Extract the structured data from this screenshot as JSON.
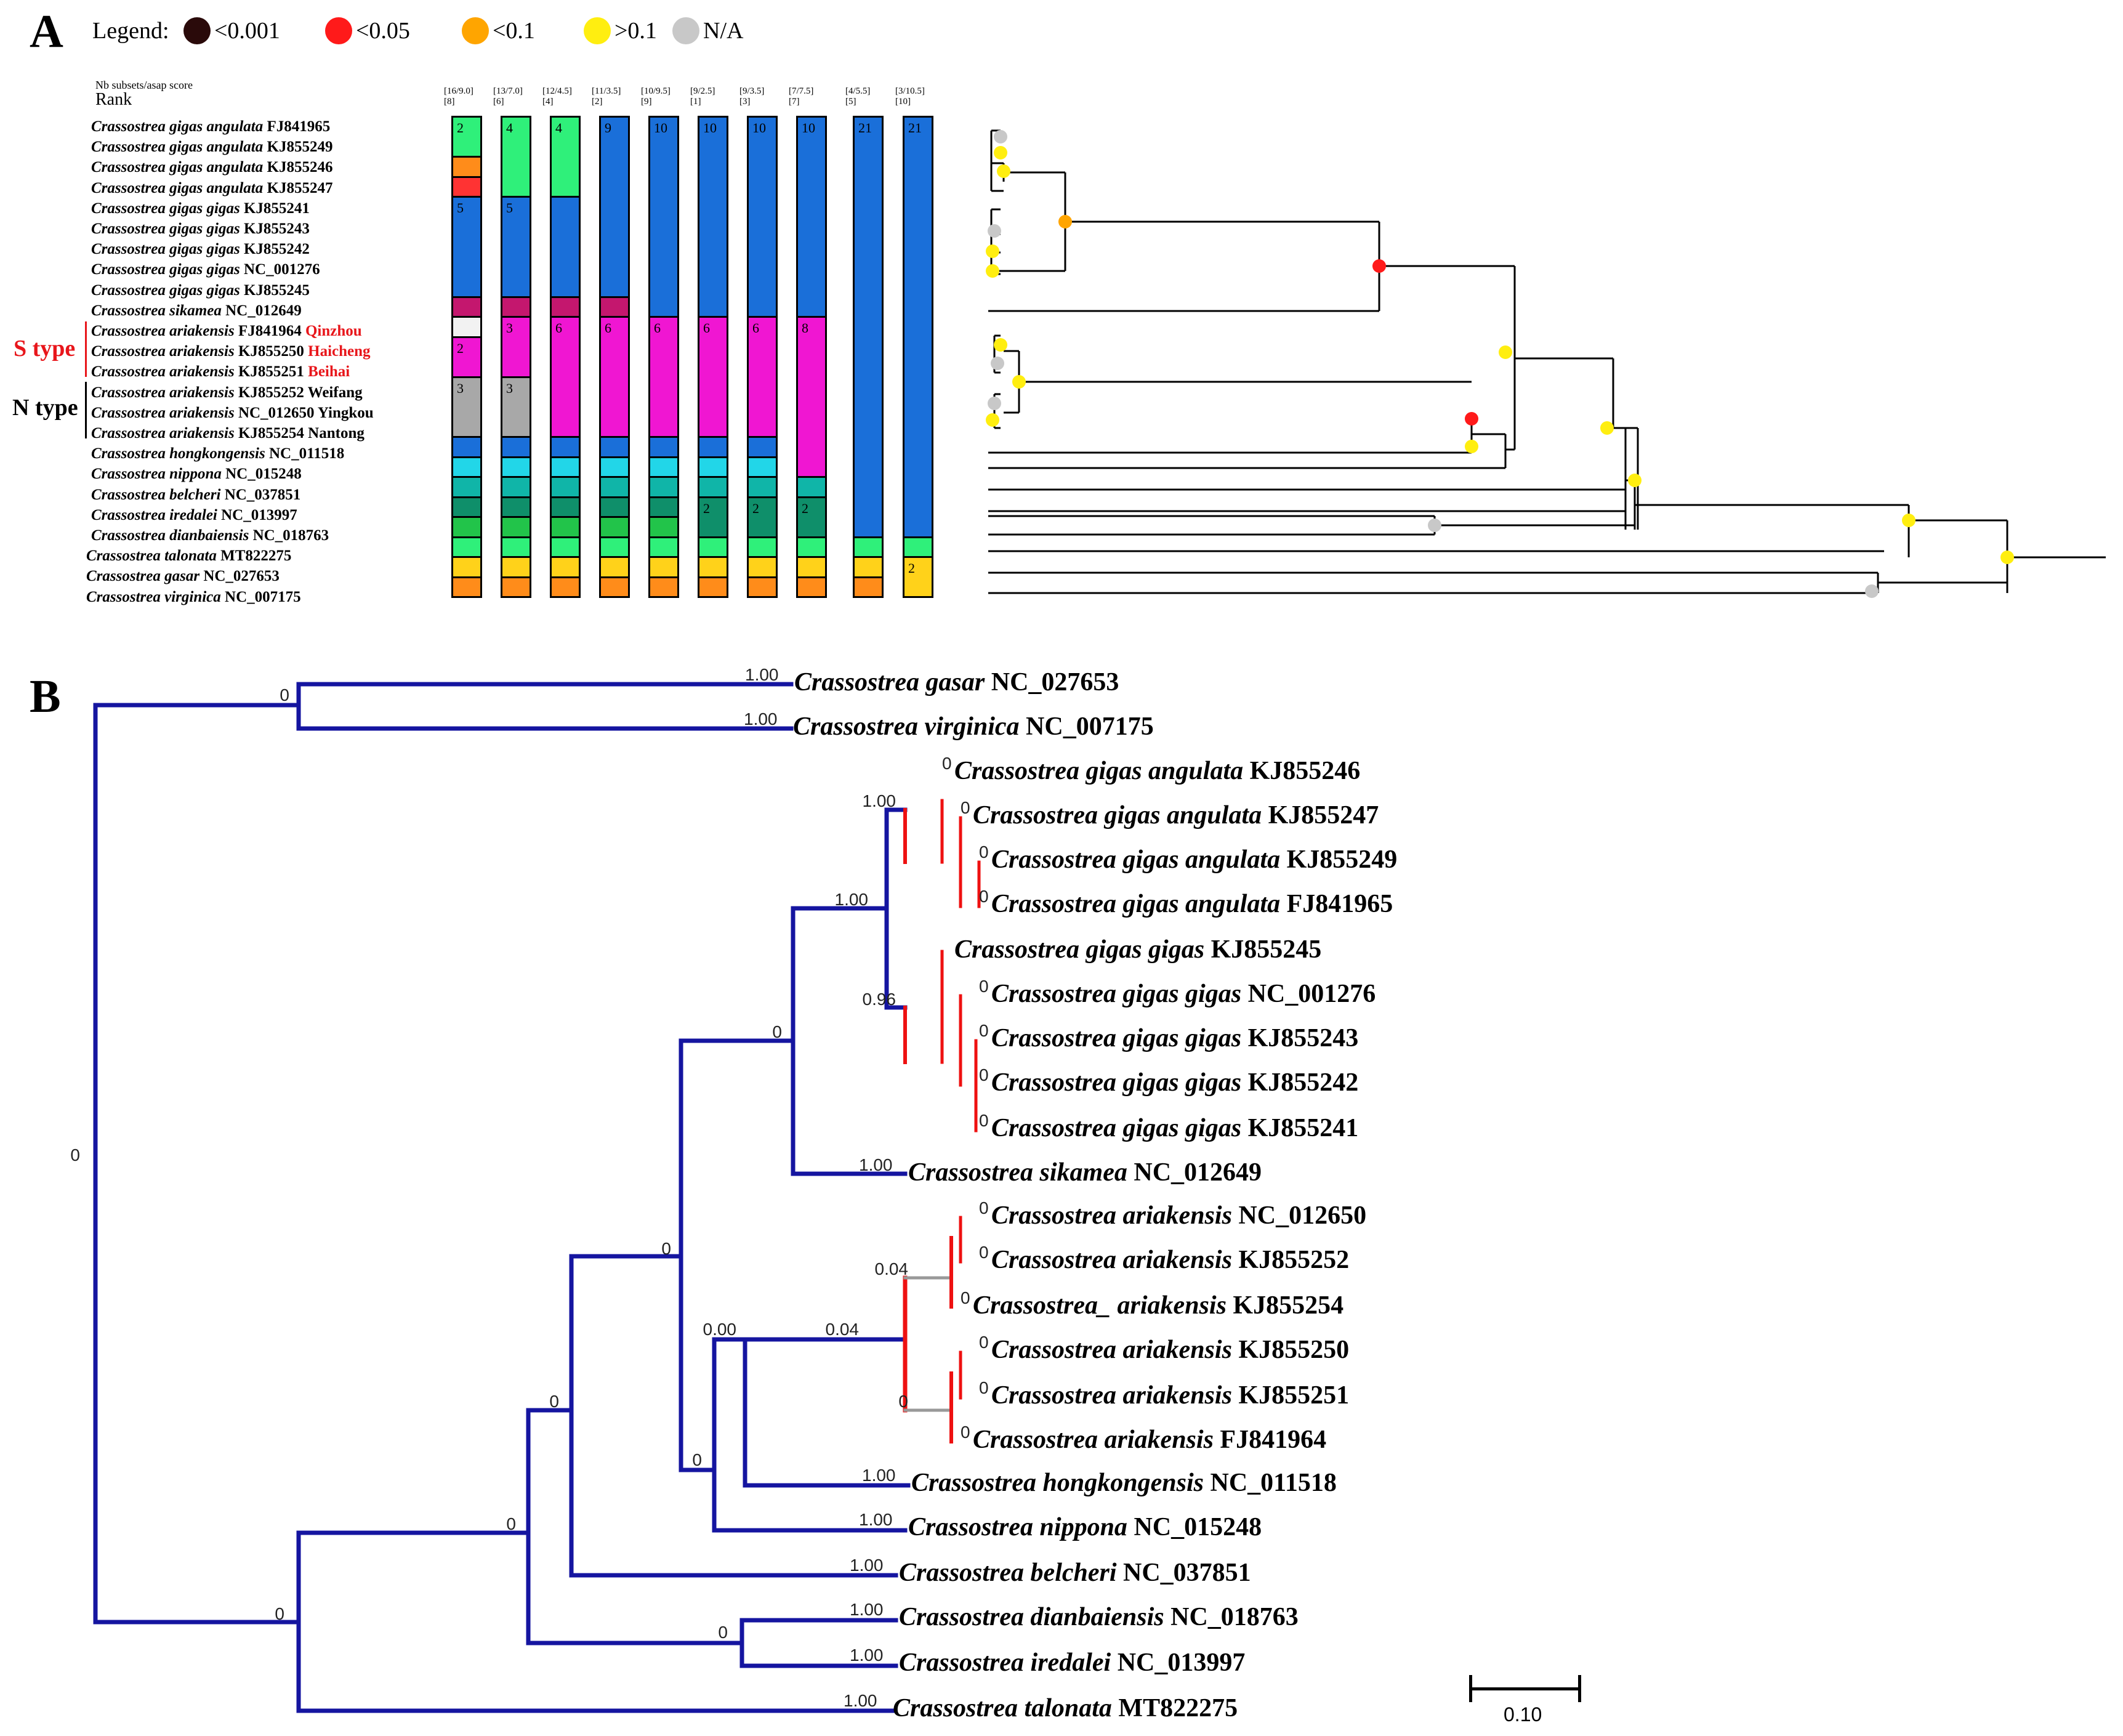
{
  "panelA": {
    "letter": "A",
    "legend": {
      "title": "Legend:",
      "items": [
        {
          "label": "<0.001",
          "color": "#2a0a0a"
        },
        {
          "label": "<0.05",
          "color": "#ff1a1a"
        },
        {
          "label": "<0.1",
          "color": "#ffa500"
        },
        {
          "label": ">0.1",
          "color": "#ffee10"
        },
        {
          "label": "N/A",
          "color": "#c8c8c8"
        }
      ]
    },
    "header_small": "Nb subsets/asap score",
    "header_rank": "Rank",
    "taxa": [
      {
        "italic": "Crassostrea gigas angulata",
        "rest": " FJ841965",
        "loc": ""
      },
      {
        "italic": "Crassostrea gigas angulata",
        "rest": " KJ855249",
        "loc": ""
      },
      {
        "italic": "Crassostrea gigas angulata",
        "rest": " KJ855246",
        "loc": ""
      },
      {
        "italic": "Crassostrea gigas angulata",
        "rest": " KJ855247",
        "loc": ""
      },
      {
        "italic": "Crassostrea gigas gigas",
        "rest": " KJ855241",
        "loc": ""
      },
      {
        "italic": "Crassostrea gigas gigas",
        "rest": " KJ855243",
        "loc": ""
      },
      {
        "italic": "Crassostrea gigas gigas",
        "rest": " KJ855242",
        "loc": ""
      },
      {
        "italic": "Crassostrea gigas gigas",
        "rest": " NC_001276",
        "loc": ""
      },
      {
        "italic": "Crassostrea gigas gigas",
        "rest": " KJ855245",
        "loc": ""
      },
      {
        "italic": "Crassostrea sikamea",
        "rest": " NC_012649",
        "loc": ""
      },
      {
        "italic": "Crassostrea ariakensis",
        "rest": " FJ841964",
        "loc": "Qinzhou",
        "locColor": "#e8161b"
      },
      {
        "italic": "Crassostrea ariakensis",
        "rest": " KJ855250",
        "loc": "Haicheng",
        "locColor": "#e8161b"
      },
      {
        "italic": "Crassostrea ariakensis",
        "rest": " KJ855251",
        "loc": "Beihai",
        "locColor": "#e8161b"
      },
      {
        "italic": "Crassostrea ariakensis",
        "rest": " KJ855252",
        "loc": "Weifang",
        "locColor": "#000000"
      },
      {
        "italic": "Crassostrea ariakensis",
        "rest": " NC_012650",
        "loc": "Yingkou",
        "locColor": "#000000"
      },
      {
        "italic": "Crassostrea ariakensis",
        "rest": " KJ855254",
        "loc": "Nantong",
        "locColor": "#000000"
      },
      {
        "italic": "Crassostrea hongkongensis",
        "rest": " NC_011518",
        "loc": ""
      },
      {
        "italic": "Crassostrea nippona",
        "rest": " NC_015248",
        "loc": ""
      },
      {
        "italic": "Crassostrea belcheri",
        "rest": " NC_037851",
        "loc": ""
      },
      {
        "italic": "Crassostrea iredalei",
        "rest": " NC_013997",
        "loc": ""
      },
      {
        "italic": "Crassostrea dianbaiensis",
        "rest": " NC_018763",
        "loc": ""
      },
      {
        "italic": "Crassostrea talonata",
        "rest": " MT822275",
        "loc": ""
      },
      {
        "italic": "Crassostrea gasar",
        "rest": " NC_027653",
        "loc": ""
      },
      {
        "italic": "Crassostrea virginica",
        "rest": " NC_007175",
        "loc": ""
      }
    ],
    "s_type_label": "S type",
    "n_type_label": "N type",
    "type_colors": {
      "s": "#e8161b",
      "n": "#000000"
    },
    "columns": [
      {
        "score": "[16/9.0]",
        "rank": "[8]",
        "segments": [
          {
            "from": 0,
            "to": 2,
            "color": "#2ff07a",
            "label": "2"
          },
          {
            "from": 2,
            "to": 3,
            "color": "#ff8c1a",
            "label": ""
          },
          {
            "from": 3,
            "to": 4,
            "color": "#ff3333",
            "label": ""
          },
          {
            "from": 4,
            "to": 9,
            "color": "#1a6fd9",
            "label": "5"
          },
          {
            "from": 9,
            "to": 10,
            "color": "#c4176e",
            "label": ""
          },
          {
            "from": 10,
            "to": 11,
            "color": "#f2f2f2",
            "label": ""
          },
          {
            "from": 11,
            "to": 13,
            "color": "#f016d2",
            "label": "2"
          },
          {
            "from": 13,
            "to": 16,
            "color": "#a8a8a8",
            "label": "3"
          },
          {
            "from": 16,
            "to": 17,
            "color": "#1a6fd9",
            "label": ""
          },
          {
            "from": 17,
            "to": 18,
            "color": "#22d6e8",
            "label": ""
          },
          {
            "from": 18,
            "to": 19,
            "color": "#10b5a8",
            "label": ""
          },
          {
            "from": 19,
            "to": 20,
            "color": "#0f8f6a",
            "label": ""
          },
          {
            "from": 20,
            "to": 21,
            "color": "#22c44a",
            "label": ""
          },
          {
            "from": 21,
            "to": 22,
            "color": "#2ff07a",
            "label": ""
          },
          {
            "from": 22,
            "to": 23,
            "color": "#ffd21a",
            "label": ""
          },
          {
            "from": 23,
            "to": 24,
            "color": "#ff8c1a",
            "label": ""
          }
        ]
      },
      {
        "score": "[13/7.0]",
        "rank": "[6]",
        "segments": [
          {
            "from": 0,
            "to": 4,
            "color": "#2ff07a",
            "label": "4"
          },
          {
            "from": 4,
            "to": 9,
            "color": "#1a6fd9",
            "label": "5"
          },
          {
            "from": 9,
            "to": 10,
            "color": "#c4176e",
            "label": ""
          },
          {
            "from": 10,
            "to": 13,
            "color": "#f016d2",
            "label": "3"
          },
          {
            "from": 13,
            "to": 16,
            "color": "#a8a8a8",
            "label": "3"
          },
          {
            "from": 16,
            "to": 17,
            "color": "#1a6fd9",
            "label": ""
          },
          {
            "from": 17,
            "to": 18,
            "color": "#22d6e8",
            "label": ""
          },
          {
            "from": 18,
            "to": 19,
            "color": "#10b5a8",
            "label": ""
          },
          {
            "from": 19,
            "to": 20,
            "color": "#0f8f6a",
            "label": ""
          },
          {
            "from": 20,
            "to": 21,
            "color": "#22c44a",
            "label": ""
          },
          {
            "from": 21,
            "to": 22,
            "color": "#2ff07a",
            "label": ""
          },
          {
            "from": 22,
            "to": 23,
            "color": "#ffd21a",
            "label": ""
          },
          {
            "from": 23,
            "to": 24,
            "color": "#ff8c1a",
            "label": ""
          }
        ]
      },
      {
        "score": "[12/4.5]",
        "rank": "[4]",
        "segments": [
          {
            "from": 0,
            "to": 4,
            "color": "#2ff07a",
            "label": "4"
          },
          {
            "from": 4,
            "to": 9,
            "color": "#1a6fd9",
            "label": ""
          },
          {
            "from": 9,
            "to": 10,
            "color": "#c4176e",
            "label": ""
          },
          {
            "from": 10,
            "to": 16,
            "color": "#f016d2",
            "label": "6"
          },
          {
            "from": 16,
            "to": 17,
            "color": "#1a6fd9",
            "label": ""
          },
          {
            "from": 17,
            "to": 18,
            "color": "#22d6e8",
            "label": ""
          },
          {
            "from": 18,
            "to": 19,
            "color": "#10b5a8",
            "label": ""
          },
          {
            "from": 19,
            "to": 20,
            "color": "#0f8f6a",
            "label": ""
          },
          {
            "from": 20,
            "to": 21,
            "color": "#22c44a",
            "label": ""
          },
          {
            "from": 21,
            "to": 22,
            "color": "#2ff07a",
            "label": ""
          },
          {
            "from": 22,
            "to": 23,
            "color": "#ffd21a",
            "label": ""
          },
          {
            "from": 23,
            "to": 24,
            "color": "#ff8c1a",
            "label": ""
          }
        ]
      },
      {
        "score": "[11/3.5]",
        "rank": "[2]",
        "segments": [
          {
            "from": 0,
            "to": 9,
            "color": "#1a6fd9",
            "label": "9"
          },
          {
            "from": 9,
            "to": 10,
            "color": "#c4176e",
            "label": ""
          },
          {
            "from": 10,
            "to": 16,
            "color": "#f016d2",
            "label": "6"
          },
          {
            "from": 16,
            "to": 17,
            "color": "#1a6fd9",
            "label": ""
          },
          {
            "from": 17,
            "to": 18,
            "color": "#22d6e8",
            "label": ""
          },
          {
            "from": 18,
            "to": 19,
            "color": "#10b5a8",
            "label": ""
          },
          {
            "from": 19,
            "to": 20,
            "color": "#0f8f6a",
            "label": ""
          },
          {
            "from": 20,
            "to": 21,
            "color": "#22c44a",
            "label": ""
          },
          {
            "from": 21,
            "to": 22,
            "color": "#2ff07a",
            "label": ""
          },
          {
            "from": 22,
            "to": 23,
            "color": "#ffd21a",
            "label": ""
          },
          {
            "from": 23,
            "to": 24,
            "color": "#ff8c1a",
            "label": ""
          }
        ]
      },
      {
        "score": "[10/9.5]",
        "rank": "[9]",
        "segments": [
          {
            "from": 0,
            "to": 10,
            "color": "#1a6fd9",
            "label": "10"
          },
          {
            "from": 10,
            "to": 16,
            "color": "#f016d2",
            "label": "6"
          },
          {
            "from": 16,
            "to": 17,
            "color": "#1a6fd9",
            "label": ""
          },
          {
            "from": 17,
            "to": 18,
            "color": "#22d6e8",
            "label": ""
          },
          {
            "from": 18,
            "to": 19,
            "color": "#10b5a8",
            "label": ""
          },
          {
            "from": 19,
            "to": 20,
            "color": "#0f8f6a",
            "label": ""
          },
          {
            "from": 20,
            "to": 21,
            "color": "#22c44a",
            "label": ""
          },
          {
            "from": 21,
            "to": 22,
            "color": "#2ff07a",
            "label": ""
          },
          {
            "from": 22,
            "to": 23,
            "color": "#ffd21a",
            "label": ""
          },
          {
            "from": 23,
            "to": 24,
            "color": "#ff8c1a",
            "label": ""
          }
        ]
      },
      {
        "score": "[9/2.5]",
        "rank": "[1]",
        "segments": [
          {
            "from": 0,
            "to": 10,
            "color": "#1a6fd9",
            "label": "10"
          },
          {
            "from": 10,
            "to": 16,
            "color": "#f016d2",
            "label": "6"
          },
          {
            "from": 16,
            "to": 17,
            "color": "#1a6fd9",
            "label": ""
          },
          {
            "from": 17,
            "to": 18,
            "color": "#22d6e8",
            "label": ""
          },
          {
            "from": 18,
            "to": 19,
            "color": "#10b5a8",
            "label": ""
          },
          {
            "from": 19,
            "to": 21,
            "color": "#0f8f6a",
            "label": "2"
          },
          {
            "from": 21,
            "to": 22,
            "color": "#2ff07a",
            "label": ""
          },
          {
            "from": 22,
            "to": 23,
            "color": "#ffd21a",
            "label": ""
          },
          {
            "from": 23,
            "to": 24,
            "color": "#ff8c1a",
            "label": ""
          }
        ]
      },
      {
        "score": "[9/3.5]",
        "rank": "[3]",
        "segments": [
          {
            "from": 0,
            "to": 10,
            "color": "#1a6fd9",
            "label": "10"
          },
          {
            "from": 10,
            "to": 16,
            "color": "#f016d2",
            "label": "6"
          },
          {
            "from": 16,
            "to": 17,
            "color": "#1a6fd9",
            "label": ""
          },
          {
            "from": 17,
            "to": 18,
            "color": "#22d6e8",
            "label": ""
          },
          {
            "from": 18,
            "to": 19,
            "color": "#10b5a8",
            "label": ""
          },
          {
            "from": 19,
            "to": 21,
            "color": "#0f8f6a",
            "label": "2"
          },
          {
            "from": 21,
            "to": 22,
            "color": "#2ff07a",
            "label": ""
          },
          {
            "from": 22,
            "to": 23,
            "color": "#ffd21a",
            "label": ""
          },
          {
            "from": 23,
            "to": 24,
            "color": "#ff8c1a",
            "label": ""
          }
        ]
      },
      {
        "score": "[7/7.5]",
        "rank": "[7]",
        "segments": [
          {
            "from": 0,
            "to": 10,
            "color": "#1a6fd9",
            "label": "10"
          },
          {
            "from": 10,
            "to": 18,
            "color": "#f016d2",
            "label": "8"
          },
          {
            "from": 18,
            "to": 19,
            "color": "#10b5a8",
            "label": ""
          },
          {
            "from": 19,
            "to": 21,
            "color": "#0f8f6a",
            "label": "2"
          },
          {
            "from": 21,
            "to": 22,
            "color": "#2ff07a",
            "label": ""
          },
          {
            "from": 22,
            "to": 23,
            "color": "#ffd21a",
            "label": ""
          },
          {
            "from": 23,
            "to": 24,
            "color": "#ff8c1a",
            "label": ""
          }
        ]
      },
      {
        "score": "[4/5.5]",
        "rank": "[5]",
        "segments": [
          {
            "from": 0,
            "to": 21,
            "color": "#1a6fd9",
            "label": "21"
          },
          {
            "from": 21,
            "to": 22,
            "color": "#2ff07a",
            "label": ""
          },
          {
            "from": 22,
            "to": 23,
            "color": "#ffd21a",
            "label": ""
          },
          {
            "from": 23,
            "to": 24,
            "color": "#ff8c1a",
            "label": ""
          }
        ]
      },
      {
        "score": "[3/10.5]",
        "rank": "[10]",
        "segments": [
          {
            "from": 0,
            "to": 21,
            "color": "#1a6fd9",
            "label": "21"
          },
          {
            "from": 21,
            "to": 22,
            "color": "#2ff07a",
            "label": ""
          },
          {
            "from": 22,
            "to": 24,
            "color": "#ffd21a",
            "label": "2"
          }
        ]
      }
    ],
    "tree_node_colors": {
      "na": "#c8c8c8",
      "gt01": "#ffee10",
      "lt01": "#ffa500",
      "lt005": "#ff1a1a"
    }
  },
  "panelB": {
    "letter": "B",
    "scale_label": "0.10",
    "branch_color": "#1515a0",
    "terminal_color": "#ee1111",
    "taxa": [
      {
        "italic": "Crassostrea gasar",
        "rest": " NC_027653",
        "support": "1.00"
      },
      {
        "italic": "Crassostrea virginica",
        "rest": " NC_007175",
        "support": "1.00"
      },
      {
        "italic": "Crassostrea gigas angulata",
        "rest": " KJ855246",
        "support": "0"
      },
      {
        "italic": "Crassostrea gigas angulata",
        "rest": " KJ855247",
        "support": "0"
      },
      {
        "italic": "Crassostrea gigas angulata",
        "rest": " KJ855249",
        "support": "0"
      },
      {
        "italic": "Crassostrea gigas angulata",
        "rest": " FJ841965",
        "support": "0"
      },
      {
        "italic": "Crassostrea gigas gigas",
        "rest": " KJ855245",
        "support": ""
      },
      {
        "italic": "Crassostrea gigas gigas",
        "rest": " NC_001276",
        "support": "0"
      },
      {
        "italic": "Crassostrea gigas gigas",
        "rest": " KJ855243",
        "support": "0"
      },
      {
        "italic": "Crassostrea gigas gigas",
        "rest": " KJ855242",
        "support": "0"
      },
      {
        "italic": "Crassostrea gigas gigas",
        "rest": " KJ855241",
        "support": "0"
      },
      {
        "italic": "Crassostrea sikamea",
        "rest": " NC_012649",
        "support": "1.00"
      },
      {
        "italic": "Crassostrea ariakensis",
        "rest": " NC_012650",
        "support": "0"
      },
      {
        "italic": "Crassostrea ariakensis",
        "rest": " KJ855252",
        "support": "0"
      },
      {
        "italic": "Crassostrea_ ariakensis",
        "rest": " KJ855254",
        "support": "0"
      },
      {
        "italic": "Crassostrea ariakensis",
        "rest": " KJ855250",
        "support": "0"
      },
      {
        "italic": "Crassostrea ariakensis",
        "rest": " KJ855251",
        "support": "0"
      },
      {
        "italic": "Crassostrea ariakensis",
        "rest": " FJ841964",
        "support": "0"
      },
      {
        "italic": "Crassostrea hongkongensis",
        "rest": " NC_011518",
        "support": "1.00"
      },
      {
        "italic": "Crassostrea nippona",
        "rest": " NC_015248",
        "support": "1.00"
      },
      {
        "italic": "Crassostrea belcheri",
        "rest": " NC_037851",
        "support": "1.00"
      },
      {
        "italic": "Crassostrea dianbaiensis",
        "rest": " NC_018763",
        "support": "1.00"
      },
      {
        "italic": "Crassostrea iredalei",
        "rest": " NC_013997",
        "support": "1.00"
      },
      {
        "italic": "Crassostrea talonata",
        "rest": " MT822275",
        "support": "1.00"
      }
    ],
    "node_supports": [
      "0",
      "0",
      "0",
      "0",
      "0",
      "0",
      "0",
      "0",
      "0",
      "0.00",
      "1.00",
      "1.00",
      "0.96",
      "0.04",
      "0.04",
      "0"
    ]
  }
}
